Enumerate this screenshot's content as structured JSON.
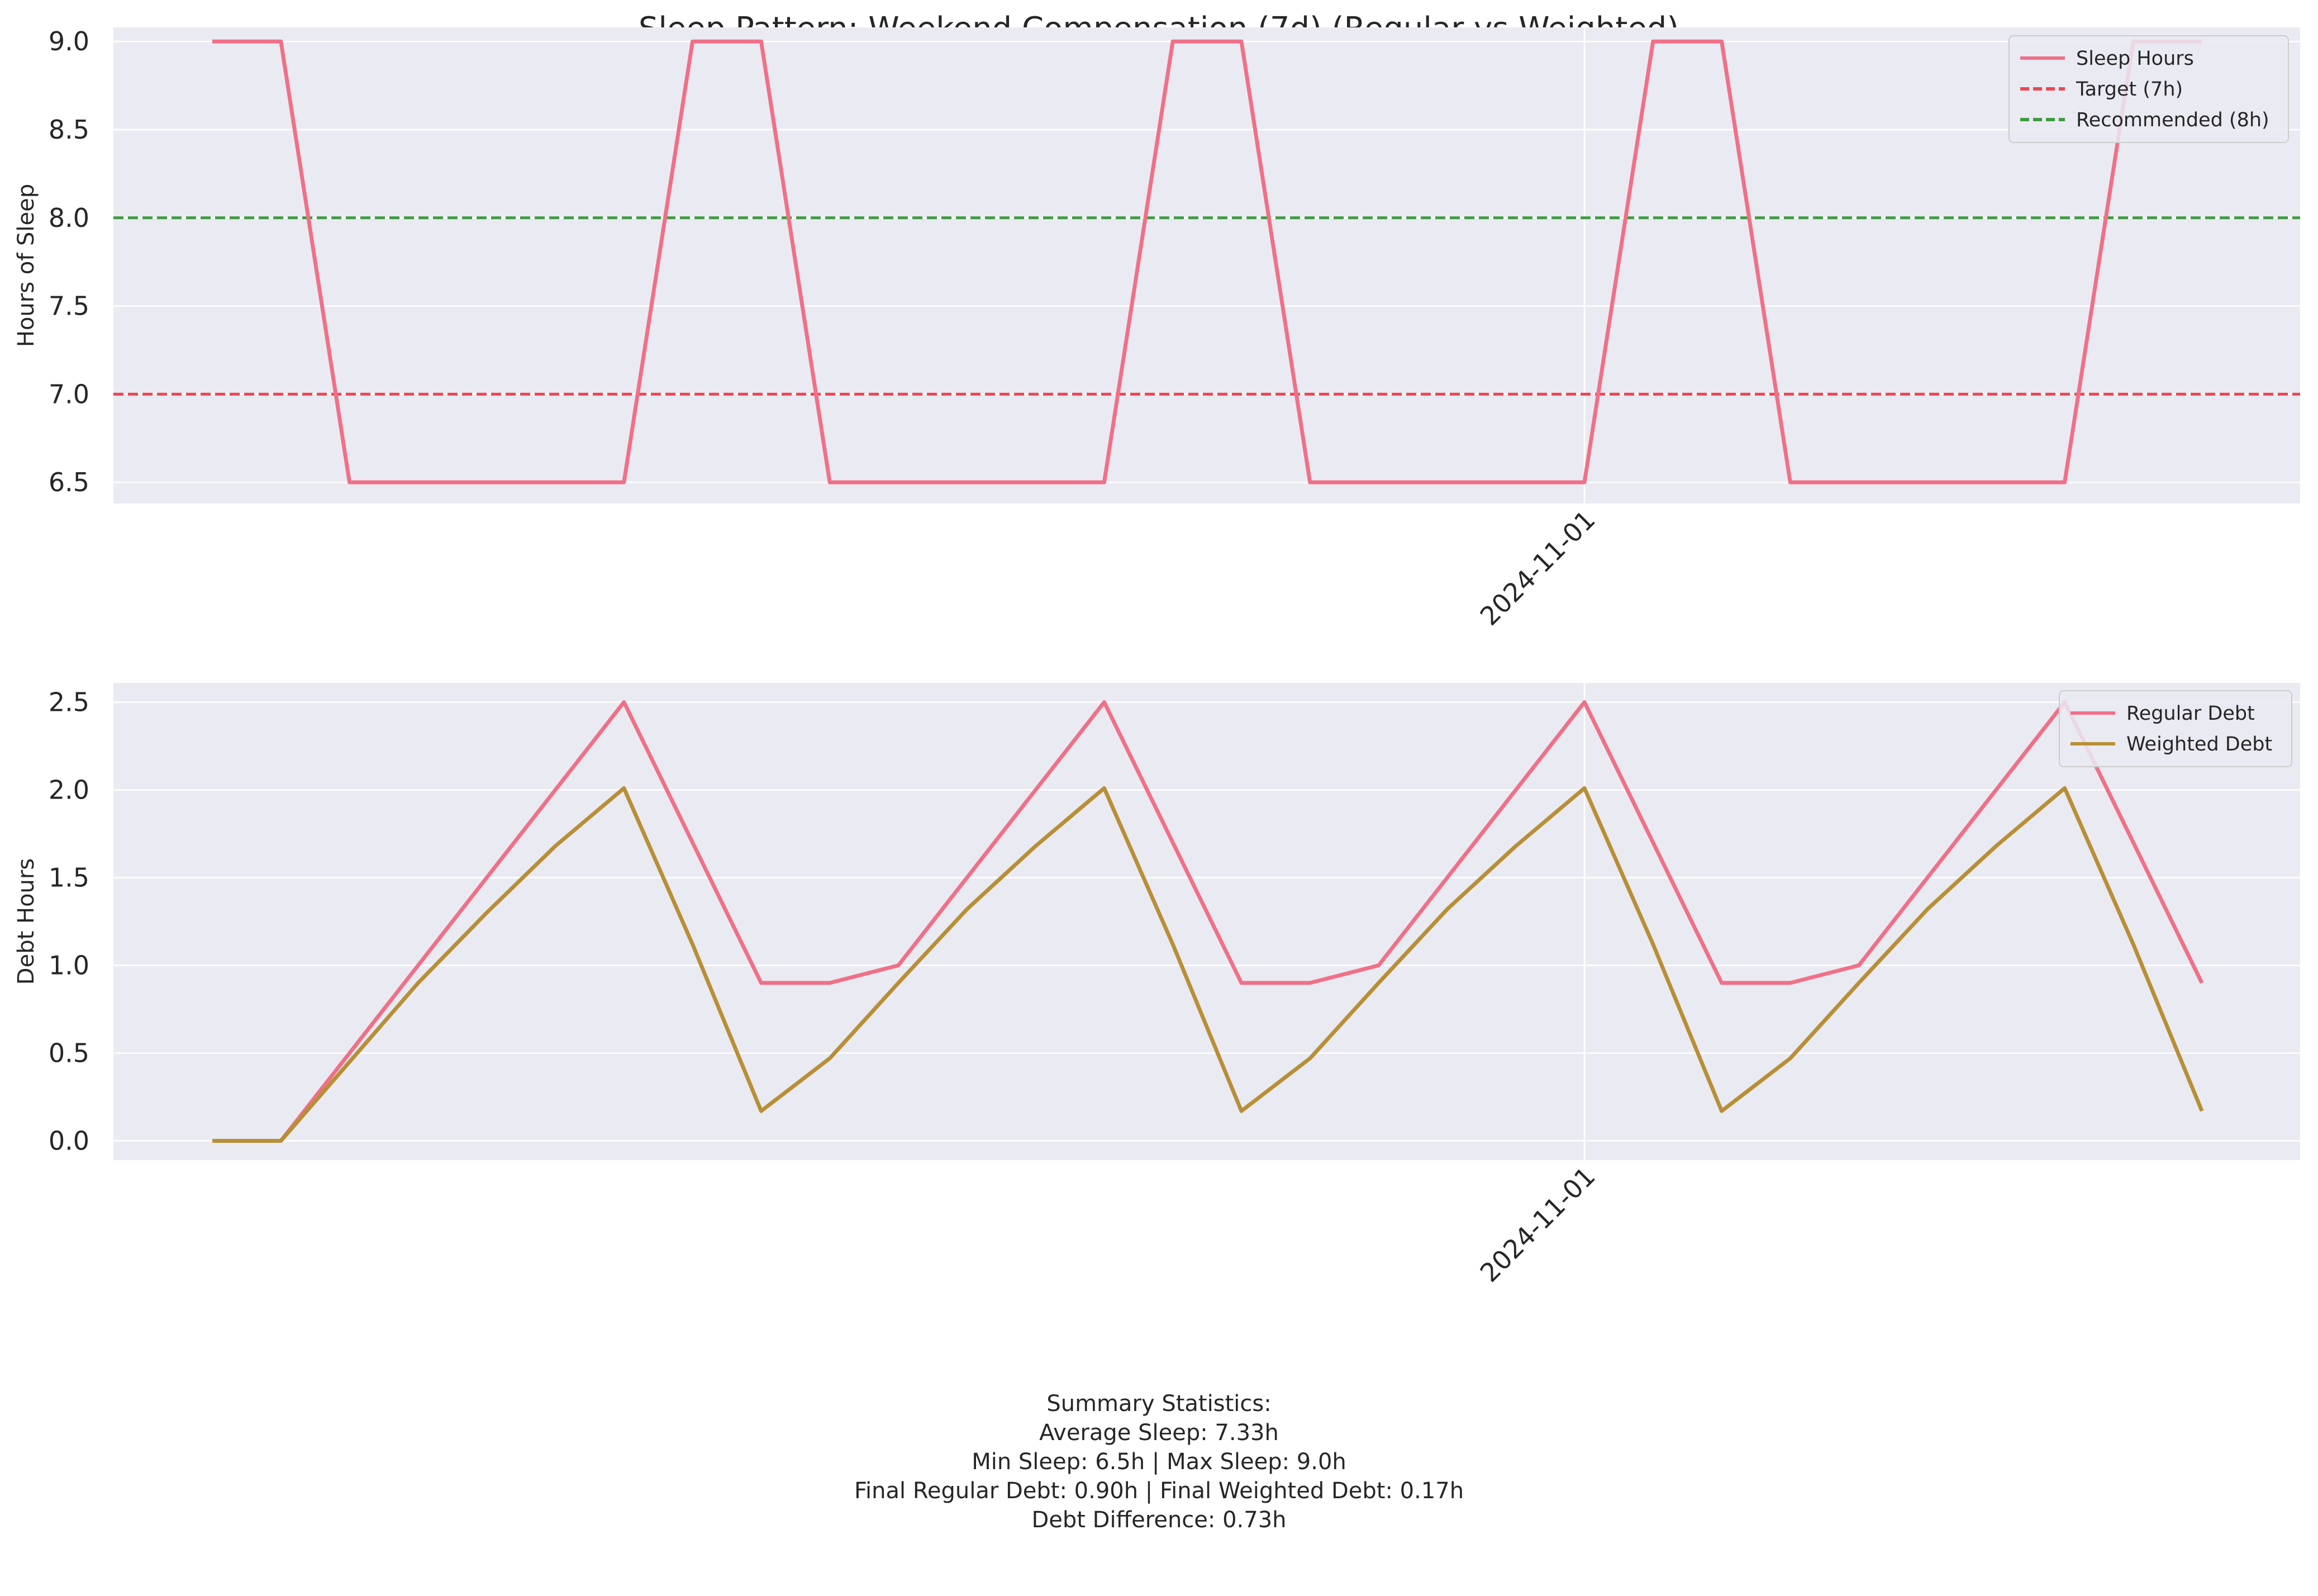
{
  "title": "Sleep Pattern: Weekend Compensation (7d) (Regular vs Weighted)",
  "colors": {
    "axes_bg": "#eaeaf2",
    "grid": "#ffffff",
    "sleep": "#f07087",
    "regular": "#f07087",
    "weighted": "#b88f36",
    "target": "#ee4452",
    "recommended": "#3d9c3f"
  },
  "chart_data": [
    {
      "type": "line",
      "ylabel": "Hours of Sleep",
      "ylim": [
        6.38,
        9.08
      ],
      "yticks": [
        "6.5",
        "7.0",
        "7.5",
        "8.0",
        "8.5",
        "9.0"
      ],
      "xtick_labels": [
        "2024-11-01"
      ],
      "xtick_index": 20,
      "grid": true,
      "legend_position": "top-right",
      "x_count": 30,
      "series": [
        {
          "name": "Sleep Hours",
          "style": "solid",
          "values": [
            9.0,
            9.0,
            6.5,
            6.5,
            6.5,
            6.5,
            6.5,
            9.0,
            9.0,
            6.5,
            6.5,
            6.5,
            6.5,
            6.5,
            9.0,
            9.0,
            6.5,
            6.5,
            6.5,
            6.5,
            6.5,
            9.0,
            9.0,
            6.5,
            6.5,
            6.5,
            6.5,
            6.5,
            9.0,
            9.0
          ]
        }
      ],
      "hlines": [
        {
          "name": "Target (7h)",
          "value": 7.0,
          "style": "dashed"
        },
        {
          "name": "Recommended (8h)",
          "value": 8.0,
          "style": "dashed"
        }
      ]
    },
    {
      "type": "line",
      "ylabel": "Debt Hours",
      "ylim": [
        -0.11,
        2.61
      ],
      "yticks": [
        "0.0",
        "0.5",
        "1.0",
        "1.5",
        "2.0",
        "2.5"
      ],
      "xtick_labels": [
        "2024-11-01"
      ],
      "xtick_index": 20,
      "grid": true,
      "legend_position": "top-right",
      "x_count": 30,
      "series": [
        {
          "name": "Regular Debt",
          "style": "solid",
          "values": [
            0.0,
            0.0,
            0.5,
            1.0,
            1.5,
            2.0,
            2.5,
            1.7,
            0.9,
            0.9,
            1.0,
            1.5,
            2.0,
            2.5,
            1.7,
            0.9,
            0.9,
            1.0,
            1.5,
            2.0,
            2.5,
            1.7,
            0.9,
            0.9,
            1.0,
            1.5,
            2.0,
            2.5,
            1.7,
            0.9
          ]
        },
        {
          "name": "Weighted Debt",
          "style": "solid",
          "values": [
            0.0,
            0.0,
            0.45,
            0.9,
            1.3,
            1.68,
            2.01,
            1.12,
            0.17,
            0.47,
            0.9,
            1.32,
            1.68,
            2.01,
            1.12,
            0.17,
            0.47,
            0.9,
            1.32,
            1.68,
            2.01,
            1.12,
            0.17,
            0.47,
            0.9,
            1.32,
            1.68,
            2.01,
            1.12,
            0.17
          ]
        }
      ]
    }
  ],
  "summary": {
    "heading": "Summary Statistics:",
    "avg": "Average Sleep: 7.33h",
    "minmax": "Min Sleep: 6.5h | Max Sleep: 9.0h",
    "final": "Final Regular Debt: 0.90h | Final Weighted Debt: 0.17h",
    "diff": "Debt Difference: 0.73h"
  }
}
